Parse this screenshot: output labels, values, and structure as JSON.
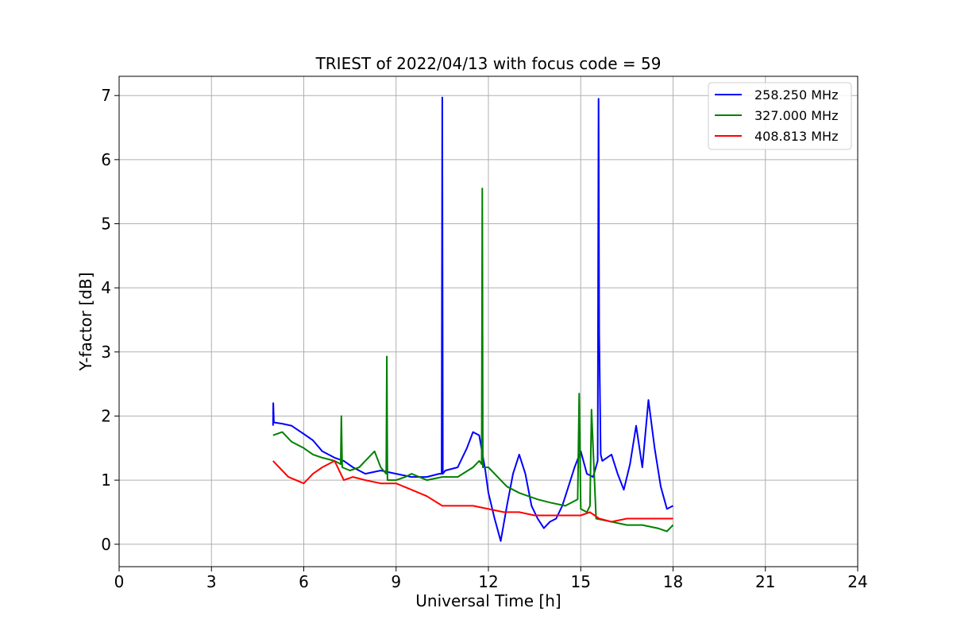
{
  "chart_data": {
    "type": "line",
    "title": "TRIEST of 2022/04/13 with focus code = 59",
    "xlabel": "Universal Time [h]",
    "ylabel": "Y-factor [dB]",
    "xlim": [
      0,
      24
    ],
    "ylim": [
      -0.35,
      7.3
    ],
    "xticks": [
      0,
      3,
      6,
      9,
      12,
      15,
      18,
      21,
      24
    ],
    "yticks": [
      0,
      1,
      2,
      3,
      4,
      5,
      6,
      7
    ],
    "grid": true,
    "legend_position": "top-right",
    "series": [
      {
        "name": "258.250 MHz",
        "color": "#0000ff",
        "x": [
          5.0,
          5.01,
          5.03,
          5.3,
          5.6,
          6.0,
          6.3,
          6.6,
          7.0,
          7.3,
          7.6,
          8.0,
          8.5,
          9.0,
          9.5,
          10.0,
          10.4,
          10.48,
          10.5,
          10.52,
          10.6,
          11.0,
          11.3,
          11.5,
          11.7,
          11.9,
          12.0,
          12.2,
          12.4,
          12.6,
          12.8,
          13.0,
          13.2,
          13.4,
          13.6,
          13.8,
          14.0,
          14.2,
          14.4,
          14.6,
          14.8,
          15.0,
          15.2,
          15.4,
          15.55,
          15.58,
          15.6,
          15.65,
          15.7,
          16.0,
          16.2,
          16.4,
          16.6,
          16.8,
          17.0,
          17.2,
          17.4,
          17.6,
          17.8,
          18.0
        ],
        "y": [
          1.85,
          2.2,
          1.9,
          1.88,
          1.85,
          1.72,
          1.62,
          1.45,
          1.35,
          1.3,
          1.2,
          1.1,
          1.15,
          1.1,
          1.05,
          1.05,
          1.1,
          1.1,
          6.97,
          1.1,
          1.15,
          1.2,
          1.5,
          1.75,
          1.7,
          1.15,
          0.8,
          0.4,
          0.05,
          0.6,
          1.1,
          1.4,
          1.1,
          0.6,
          0.4,
          0.25,
          0.35,
          0.4,
          0.6,
          0.9,
          1.2,
          1.45,
          1.1,
          1.05,
          1.3,
          6.95,
          3.3,
          1.4,
          1.3,
          1.4,
          1.1,
          0.85,
          1.25,
          1.85,
          1.2,
          2.25,
          1.5,
          0.9,
          0.55,
          0.6
        ]
      },
      {
        "name": "327.000 MHz",
        "color": "#008000",
        "x": [
          5.0,
          5.3,
          5.6,
          6.0,
          6.3,
          6.6,
          7.0,
          7.2,
          7.22,
          7.25,
          7.5,
          7.8,
          8.0,
          8.3,
          8.5,
          8.68,
          8.7,
          8.72,
          9.0,
          9.3,
          9.5,
          10.0,
          10.5,
          11.0,
          11.5,
          11.7,
          11.78,
          11.8,
          11.82,
          12.0,
          12.3,
          12.6,
          13.0,
          13.3,
          13.6,
          14.0,
          14.5,
          14.9,
          14.95,
          15.0,
          15.2,
          15.3,
          15.35,
          15.5,
          16.0,
          16.5,
          17.0,
          17.5,
          17.8,
          18.0
        ],
        "y": [
          1.7,
          1.75,
          1.6,
          1.5,
          1.4,
          1.35,
          1.3,
          1.25,
          2.0,
          1.2,
          1.15,
          1.2,
          1.3,
          1.45,
          1.2,
          1.1,
          2.93,
          1.0,
          1.0,
          1.05,
          1.1,
          1.0,
          1.05,
          1.05,
          1.2,
          1.3,
          1.25,
          5.55,
          1.2,
          1.2,
          1.05,
          0.9,
          0.8,
          0.75,
          0.7,
          0.65,
          0.6,
          0.7,
          2.35,
          0.55,
          0.5,
          0.6,
          2.1,
          0.4,
          0.35,
          0.3,
          0.3,
          0.25,
          0.2,
          0.3
        ]
      },
      {
        "name": "408.813 MHz",
        "color": "#ff0000",
        "x": [
          5.0,
          5.2,
          5.5,
          6.0,
          6.3,
          6.6,
          7.0,
          7.3,
          7.6,
          8.0,
          8.5,
          9.0,
          9.5,
          10.0,
          10.5,
          11.0,
          11.5,
          12.0,
          12.5,
          13.0,
          13.5,
          14.0,
          14.5,
          15.0,
          15.3,
          15.6,
          16.0,
          16.5,
          17.0,
          17.5,
          18.0
        ],
        "y": [
          1.3,
          1.2,
          1.05,
          0.95,
          1.1,
          1.2,
          1.3,
          1.0,
          1.05,
          1.0,
          0.95,
          0.95,
          0.85,
          0.75,
          0.6,
          0.6,
          0.6,
          0.55,
          0.5,
          0.5,
          0.45,
          0.45,
          0.45,
          0.45,
          0.5,
          0.4,
          0.35,
          0.4,
          0.4,
          0.4,
          0.4
        ]
      }
    ]
  }
}
